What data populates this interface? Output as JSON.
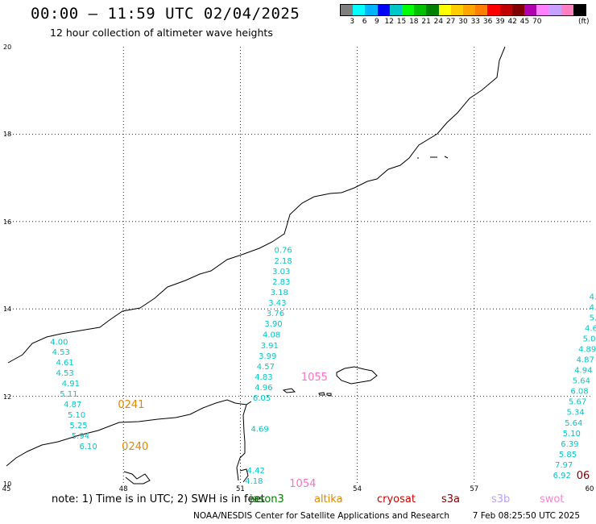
{
  "header": {
    "title": "00:00 – 11:59 UTC 02/04/2025",
    "subtitle": "12 hour collection of altimeter wave heights"
  },
  "colorbar": {
    "colors": [
      "#7f7f7f",
      "#00ffff",
      "#00b3ff",
      "#0000ff",
      "#00c8c8",
      "#00ff00",
      "#00c000",
      "#008000",
      "#ffff00",
      "#ffcc00",
      "#ffa500",
      "#ff8000",
      "#ff0000",
      "#c00000",
      "#800000",
      "#b000b0",
      "#ff80ff",
      "#c8a0ff",
      "#ff80c0",
      "#000000"
    ],
    "labels": [
      "3",
      "6",
      "9",
      "12",
      "15",
      "18",
      "21",
      "24",
      "27",
      "30",
      "33",
      "36",
      "39",
      "42",
      "45",
      "70"
    ],
    "unit": "(ft)"
  },
  "axes": {
    "y_labels": [
      "20",
      "18",
      "16",
      "14",
      "12",
      "10"
    ],
    "x_labels": [
      "45",
      "48",
      "51",
      "54",
      "57",
      "60"
    ],
    "lat_range": [
      10,
      20
    ],
    "lon_range": [
      45,
      60
    ]
  },
  "tracks": [
    {
      "id": "track-a",
      "color": "#00c8c8",
      "points": [
        {
          "lon": 46.35,
          "lat": 13.26,
          "label": "4.00"
        },
        {
          "lon": 46.4,
          "lat": 13.03,
          "label": "4.53"
        },
        {
          "lon": 46.5,
          "lat": 12.79,
          "label": "4.61"
        },
        {
          "lon": 46.5,
          "lat": 12.55,
          "label": "4.53"
        },
        {
          "lon": 46.65,
          "lat": 12.31,
          "label": "4.91"
        },
        {
          "lon": 46.6,
          "lat": 12.07,
          "label": "5.11"
        },
        {
          "lon": 46.7,
          "lat": 11.83,
          "label": "4.87"
        },
        {
          "lon": 46.8,
          "lat": 11.59,
          "label": "5.10"
        },
        {
          "lon": 46.85,
          "lat": 11.35,
          "label": "5.25"
        },
        {
          "lon": 46.9,
          "lat": 11.11,
          "label": "5.94"
        },
        {
          "lon": 47.1,
          "lat": 10.87,
          "label": "6.10"
        }
      ]
    },
    {
      "id": "track-b",
      "color": "#00c8c8",
      "points": [
        {
          "lon": 52.1,
          "lat": 15.36,
          "label": "0.76"
        },
        {
          "lon": 52.1,
          "lat": 15.11,
          "label": "2.18"
        },
        {
          "lon": 52.05,
          "lat": 14.87,
          "label": "3.03"
        },
        {
          "lon": 52.05,
          "lat": 14.63,
          "label": "2.83"
        },
        {
          "lon": 52.0,
          "lat": 14.39,
          "label": "3.18"
        },
        {
          "lon": 51.95,
          "lat": 14.15,
          "label": "3.43"
        },
        {
          "lon": 51.9,
          "lat": 13.91,
          "label": "3.76"
        },
        {
          "lon": 51.85,
          "lat": 13.67,
          "label": "3.90"
        },
        {
          "lon": 51.8,
          "lat": 13.42,
          "label": "4.08"
        },
        {
          "lon": 51.75,
          "lat": 13.17,
          "label": "3.91"
        },
        {
          "lon": 51.7,
          "lat": 12.93,
          "label": "3.99"
        },
        {
          "lon": 51.65,
          "lat": 12.69,
          "label": "4.57"
        },
        {
          "lon": 51.6,
          "lat": 12.45,
          "label": "4.83"
        },
        {
          "lon": 51.6,
          "lat": 12.21,
          "label": "4.96"
        },
        {
          "lon": 51.55,
          "lat": 11.97,
          "label": "6.05"
        },
        {
          "lon": 51.5,
          "lat": 11.26,
          "label": "4.69"
        },
        {
          "lon": 51.4,
          "lat": 10.31,
          "label": "4.42"
        },
        {
          "lon": 51.35,
          "lat": 10.07,
          "label": "4.18"
        }
      ]
    },
    {
      "id": "track-c",
      "color": "#00c8c8",
      "points": [
        {
          "lon": 60.05,
          "lat": 14.29,
          "label": "4."
        },
        {
          "lon": 60.05,
          "lat": 14.05,
          "label": "4."
        },
        {
          "lon": 60.05,
          "lat": 13.81,
          "label": "5."
        },
        {
          "lon": 60.0,
          "lat": 13.57,
          "label": "4.6"
        },
        {
          "lon": 59.95,
          "lat": 13.33,
          "label": "5.0"
        },
        {
          "lon": 59.9,
          "lat": 13.09,
          "label": "4.89"
        },
        {
          "lon": 59.85,
          "lat": 12.85,
          "label": "4.87"
        },
        {
          "lon": 59.8,
          "lat": 12.61,
          "label": "4.94"
        },
        {
          "lon": 59.75,
          "lat": 12.37,
          "label": "5.64"
        },
        {
          "lon": 59.7,
          "lat": 12.13,
          "label": "6.08"
        },
        {
          "lon": 59.65,
          "lat": 11.89,
          "label": "5.67"
        },
        {
          "lon": 59.6,
          "lat": 11.65,
          "label": "5.34"
        },
        {
          "lon": 59.55,
          "lat": 11.4,
          "label": "5.64"
        },
        {
          "lon": 59.5,
          "lat": 11.16,
          "label": "5.10"
        },
        {
          "lon": 59.45,
          "lat": 10.92,
          "label": "6.39"
        },
        {
          "lon": 59.4,
          "lat": 10.68,
          "label": "5.85"
        },
        {
          "lon": 59.3,
          "lat": 10.44,
          "label": "7.97"
        },
        {
          "lon": 59.25,
          "lat": 10.2,
          "label": "6.92"
        }
      ]
    }
  ],
  "time_labels": [
    {
      "lon": 48.2,
      "lat": 11.83,
      "text": "0241",
      "color": "#e08800"
    },
    {
      "lon": 48.3,
      "lat": 10.87,
      "text": "0240",
      "color": "#e08800"
    },
    {
      "lon": 52.9,
      "lat": 12.45,
      "text": "1055",
      "color": "#ff70c0"
    },
    {
      "lon": 52.6,
      "lat": 10.02,
      "text": "1054",
      "color": "#ff70c0"
    },
    {
      "lon": 60.0,
      "lat": 10.2,
      "text": "06",
      "color": "#800000"
    }
  ],
  "footer": {
    "note": "note:  1) Time is in UTC;  2) SWH is in feet",
    "satellites": [
      {
        "name": "jason3",
        "color": "#008000"
      },
      {
        "name": "altika",
        "color": "#e08800"
      },
      {
        "name": "cryosat",
        "color": "#d00000"
      },
      {
        "name": "s3a",
        "color": "#800000"
      },
      {
        "name": "s3b",
        "color": "#b8a0ff"
      },
      {
        "name": "swot",
        "color": "#ff80d0"
      }
    ],
    "credit": "NOAA/NESDIS Center for Satellite Applications and Research",
    "timestamp": "7 Feb 08:25:50 UTC 2025"
  }
}
